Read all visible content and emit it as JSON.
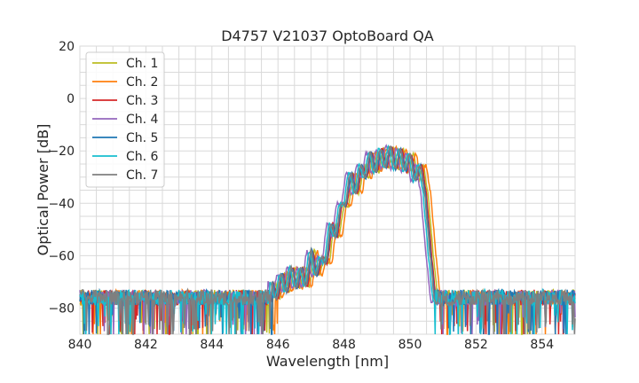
{
  "chart_data": {
    "type": "line",
    "title": "D4757 V21037 OptoBoard QA",
    "xlabel": "Wavelength [nm]",
    "ylabel": "Optical Power [dB]",
    "xlim": [
      840,
      855
    ],
    "ylim": [
      -90,
      20
    ],
    "xticks": [
      840,
      842,
      844,
      846,
      848,
      850,
      852,
      854
    ],
    "yticks": [
      20,
      0,
      -20,
      -40,
      -60,
      -80
    ],
    "xtick_labels": [
      "840",
      "842",
      "844",
      "846",
      "848",
      "850",
      "852",
      "854"
    ],
    "ytick_labels": [
      "20",
      "0",
      "−20",
      "−40",
      "−60",
      "−80"
    ],
    "xgrid_minor_step": 0.5,
    "ygrid_minor_step": 5,
    "grid": true,
    "legend_position": "top-left",
    "noise_floor_db": -76,
    "series": [
      {
        "name": "Ch. 1",
        "color": "#bcbd22",
        "shift": 0.1,
        "scale": 1.0
      },
      {
        "name": "Ch. 2",
        "color": "#ff7f0e",
        "shift": 0.18,
        "scale": 1.0
      },
      {
        "name": "Ch. 3",
        "color": "#d62728",
        "shift": 0.05,
        "scale": 1.0
      },
      {
        "name": "Ch. 4",
        "color": "#9467bd",
        "shift": -0.12,
        "scale": 1.0
      },
      {
        "name": "Ch. 5",
        "color": "#1f77b4",
        "shift": 0.02,
        "scale": 1.0
      },
      {
        "name": "Ch. 6",
        "color": "#17becf",
        "shift": -0.05,
        "scale": 1.0
      },
      {
        "name": "Ch. 7",
        "color": "#7f7f7f",
        "shift": 0.0,
        "scale": 1.0
      }
    ],
    "envelope": {
      "x": [
        845.8,
        846.2,
        846.5,
        846.8,
        847.0,
        847.3,
        847.6,
        847.9,
        848.1,
        848.4,
        848.7,
        849.0,
        849.3,
        849.6,
        849.9,
        850.2,
        850.45,
        850.6,
        850.8
      ],
      "y": [
        -72,
        -68,
        -66,
        -67,
        -60,
        -63,
        -50,
        -43,
        -31,
        -30,
        -23,
        -22,
        -20,
        -21,
        -22,
        -26,
        -30,
        -62,
        -74
      ]
    },
    "ripple_period_nm": 0.3
  }
}
